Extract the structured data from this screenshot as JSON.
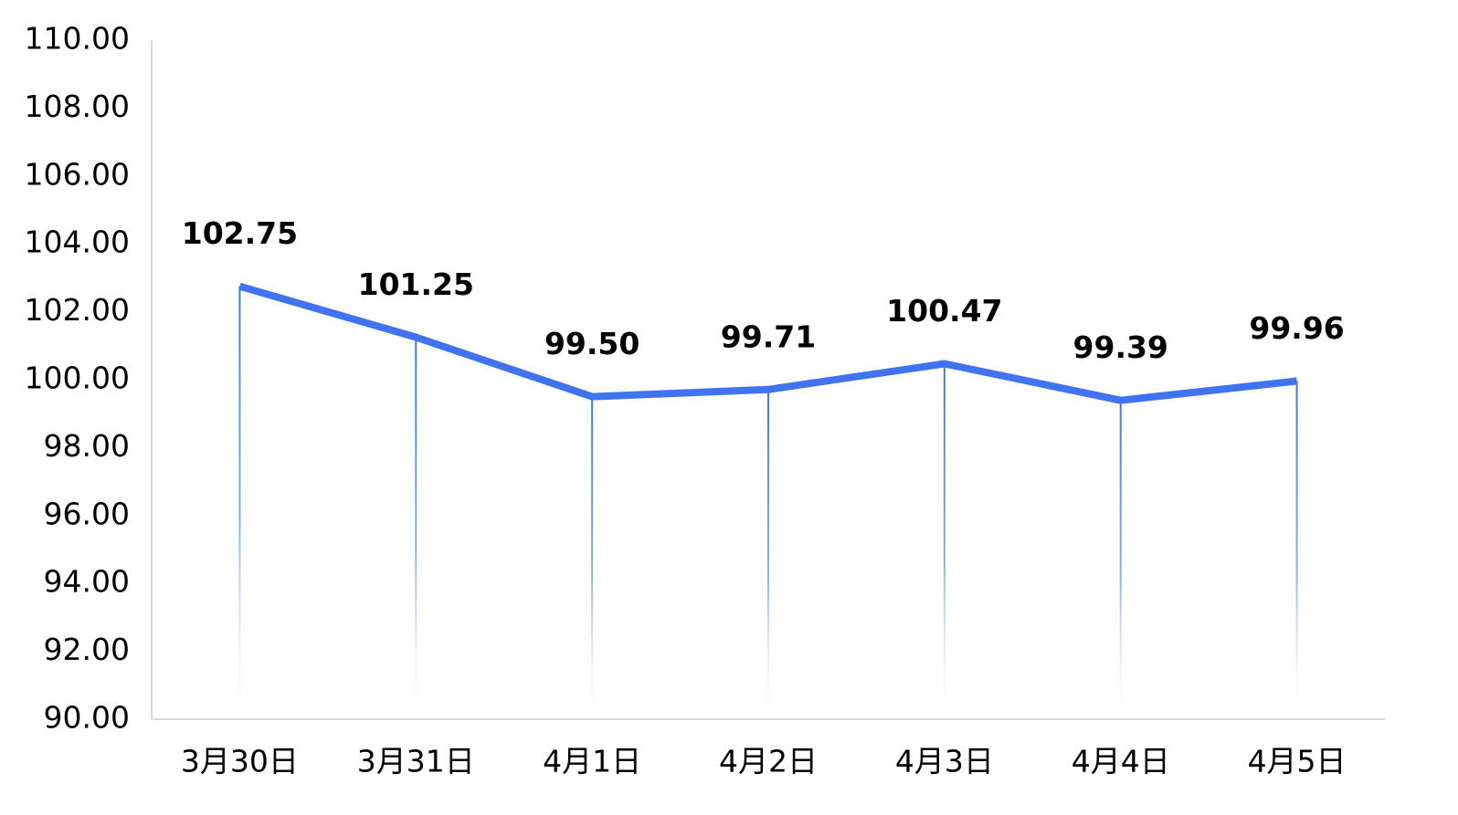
{
  "chart_data": {
    "type": "line",
    "title": "",
    "xlabel": "",
    "ylabel": "",
    "categories": [
      "3月30日",
      "3月31日",
      "4月1日",
      "4月2日",
      "4月3日",
      "4月4日",
      "4月5日"
    ],
    "series": [
      {
        "values": [
          102.75,
          101.25,
          99.5,
          99.71,
          100.47,
          99.39,
          99.96
        ]
      }
    ],
    "data_labels": [
      "102.75",
      "101.25",
      "99.50",
      "99.71",
      "100.47",
      "99.39",
      "99.96"
    ],
    "ylim": [
      90,
      110
    ],
    "yticks": [
      "90.00",
      "92.00",
      "94.00",
      "96.00",
      "98.00",
      "100.00",
      "102.00",
      "104.00",
      "106.00",
      "108.00",
      "110.00"
    ],
    "grid": false,
    "drop_lines": true,
    "colors": {
      "line": "#3F73F0",
      "axis": "#D9D9D9"
    }
  }
}
